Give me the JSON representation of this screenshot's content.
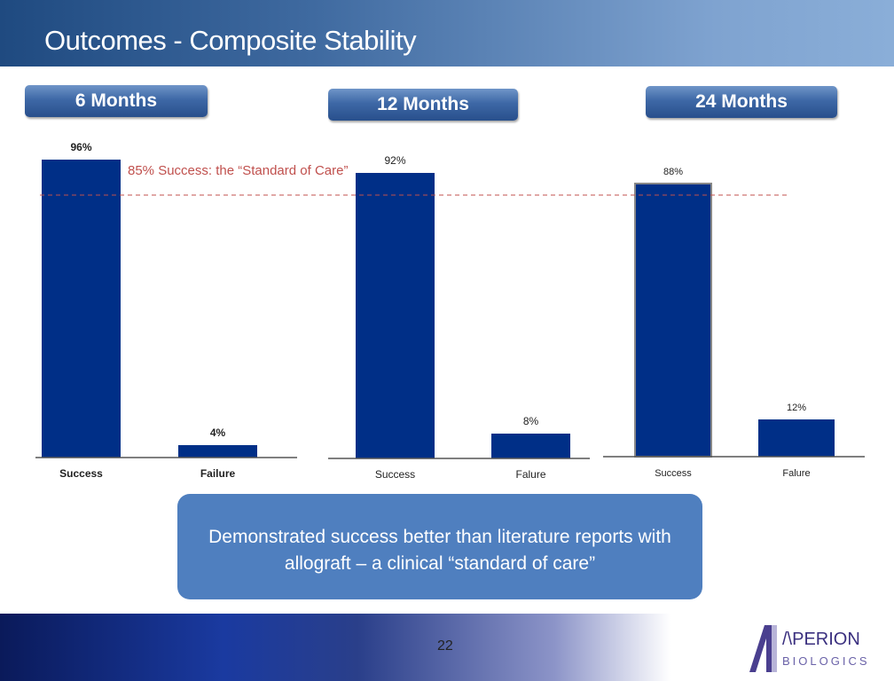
{
  "header": {
    "title": "Outcomes - Composite Stability"
  },
  "callout": {
    "text": "Demonstrated success better than literature reports with allograft – a clinical “standard of care”"
  },
  "footer": {
    "page_number": "22",
    "logo_text": "APERION BIOLOGICS"
  },
  "colors": {
    "bar": "#002f87",
    "reference": "#c0504d"
  },
  "chart_data": [
    {
      "type": "bar",
      "title": "6 Months",
      "categories": [
        "Success",
        "Failure"
      ],
      "values": [
        96,
        4
      ],
      "labels": [
        "96%",
        "4%"
      ],
      "ylim": [
        0,
        100
      ]
    },
    {
      "type": "bar",
      "title": "12 Months",
      "categories": [
        "Success",
        "Falure"
      ],
      "values": [
        92,
        8
      ],
      "labels": [
        "92%",
        "8%"
      ],
      "ylim": [
        0,
        100
      ]
    },
    {
      "type": "bar",
      "title": "24 Months",
      "categories": [
        "Success",
        "Falure"
      ],
      "values": [
        88,
        12
      ],
      "labels": [
        "88%",
        "12%"
      ],
      "ylim": [
        0,
        100
      ]
    }
  ],
  "reference_line": {
    "value": 85,
    "label": "85% Success: the “Standard of Care”"
  }
}
